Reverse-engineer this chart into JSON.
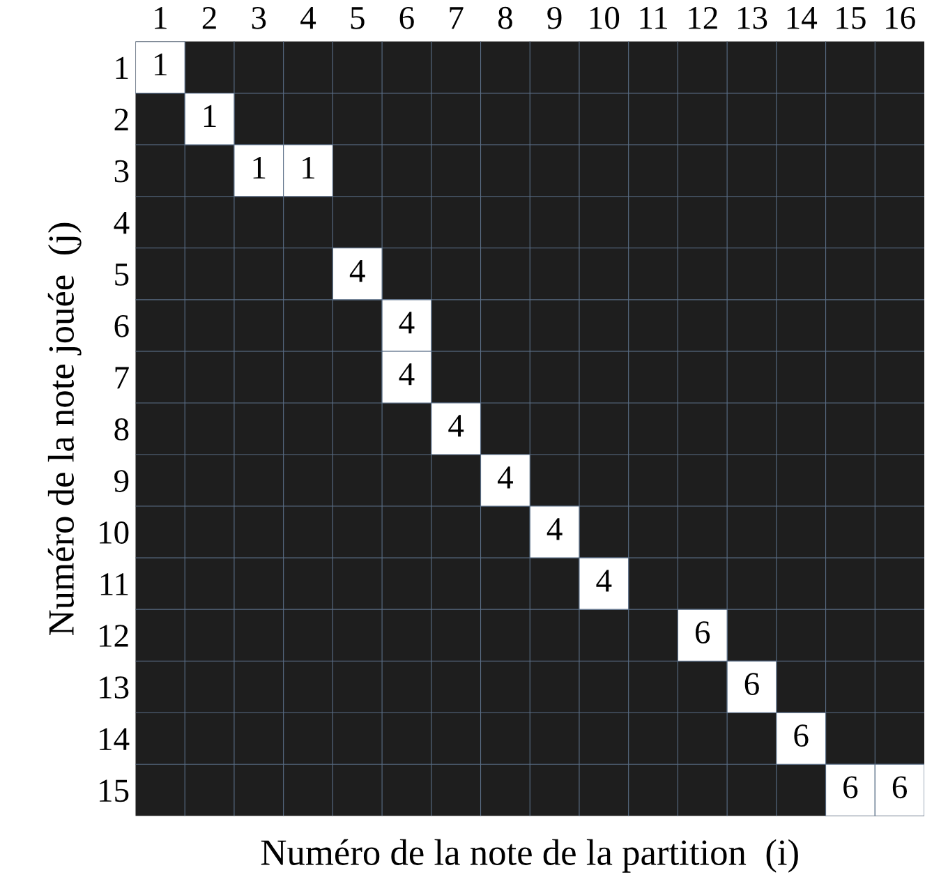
{
  "chart_data": {
    "type": "heatmap",
    "xlabel": "Numéro de la note de la partition  (i)",
    "ylabel": "Numéro de la note jouée  (j)",
    "categories": [
      "1",
      "2",
      "3",
      "4",
      "5",
      "6",
      "7",
      "8",
      "9",
      "10",
      "11",
      "12",
      "13",
      "14",
      "15",
      "16"
    ],
    "y_categories": [
      "1",
      "2",
      "3",
      "4",
      "5",
      "6",
      "7",
      "8",
      "9",
      "10",
      "11",
      "12",
      "13",
      "14",
      "15"
    ],
    "colors": [
      "#1e1e1e",
      "#ffffff"
    ],
    "cells": [
      [
        1,
        null,
        null,
        null,
        null,
        null,
        null,
        null,
        null,
        null,
        null,
        null,
        null,
        null,
        null,
        null
      ],
      [
        null,
        1,
        null,
        null,
        null,
        null,
        null,
        null,
        null,
        null,
        null,
        null,
        null,
        null,
        null,
        null
      ],
      [
        null,
        null,
        1,
        1,
        null,
        null,
        null,
        null,
        null,
        null,
        null,
        null,
        null,
        null,
        null,
        null
      ],
      [
        null,
        null,
        null,
        null,
        null,
        null,
        null,
        null,
        null,
        null,
        null,
        null,
        null,
        null,
        null,
        null
      ],
      [
        null,
        null,
        null,
        null,
        4,
        null,
        null,
        null,
        null,
        null,
        null,
        null,
        null,
        null,
        null,
        null
      ],
      [
        null,
        null,
        null,
        null,
        null,
        4,
        null,
        null,
        null,
        null,
        null,
        null,
        null,
        null,
        null,
        null
      ],
      [
        null,
        null,
        null,
        null,
        null,
        4,
        null,
        null,
        null,
        null,
        null,
        null,
        null,
        null,
        null,
        null
      ],
      [
        null,
        null,
        null,
        null,
        null,
        null,
        4,
        null,
        null,
        null,
        null,
        null,
        null,
        null,
        null,
        null
      ],
      [
        null,
        null,
        null,
        null,
        null,
        null,
        null,
        4,
        null,
        null,
        null,
        null,
        null,
        null,
        null,
        null
      ],
      [
        null,
        null,
        null,
        null,
        null,
        null,
        null,
        null,
        4,
        null,
        null,
        null,
        null,
        null,
        null,
        null
      ],
      [
        null,
        null,
        null,
        null,
        null,
        null,
        null,
        null,
        null,
        4,
        null,
        null,
        null,
        null,
        null,
        null
      ],
      [
        null,
        null,
        null,
        null,
        null,
        null,
        null,
        null,
        null,
        null,
        null,
        6,
        null,
        null,
        null,
        null
      ],
      [
        null,
        null,
        null,
        null,
        null,
        null,
        null,
        null,
        null,
        null,
        null,
        null,
        6,
        null,
        null,
        null
      ],
      [
        null,
        null,
        null,
        null,
        null,
        null,
        null,
        null,
        null,
        null,
        null,
        null,
        null,
        6,
        null,
        null
      ],
      [
        null,
        null,
        null,
        null,
        null,
        null,
        null,
        null,
        null,
        null,
        null,
        null,
        null,
        null,
        6,
        6
      ]
    ],
    "data_labels": true
  }
}
